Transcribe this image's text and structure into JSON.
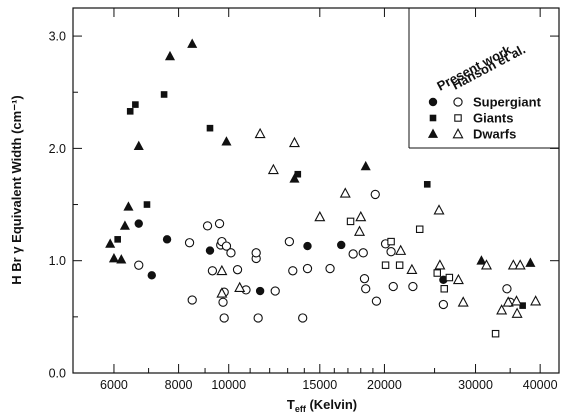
{
  "chart_data": {
    "type": "scatter",
    "title": "",
    "xlabel": {
      "main": "T",
      "sub": "eff",
      "rest": " (Kelvin)"
    },
    "ylabel": "H Br γ Equivalent Width (cm⁻¹)",
    "x_scale": "log",
    "xlim": [
      5000,
      43500
    ],
    "ylim": [
      0.0,
      3.25
    ],
    "x_ticks": [
      {
        "value": 6000,
        "label": "6000"
      },
      {
        "value": 8000,
        "label": "8000"
      },
      {
        "value": 10000,
        "label": "10000"
      },
      {
        "value": 15000,
        "label": "15000"
      },
      {
        "value": 20000,
        "label": "20000"
      },
      {
        "value": 30000,
        "label": "30000"
      },
      {
        "value": 40000,
        "label": "40000"
      }
    ],
    "x_minor_ticks": [
      7000,
      9000,
      11000,
      12000,
      13000,
      14000,
      16000,
      17000,
      18000,
      19000,
      25000,
      35000
    ],
    "y_ticks": [
      {
        "value": 0.0,
        "label": "0.0"
      },
      {
        "value": 1.0,
        "label": "1.0"
      },
      {
        "value": 2.0,
        "label": "2.0"
      },
      {
        "value": 3.0,
        "label": "3.0"
      }
    ],
    "legend": {
      "placement": "top-right",
      "column_headers": [
        "Present work",
        "Hanson et al."
      ],
      "entries": [
        "Supergiant",
        "Giants",
        "Dwarfs"
      ]
    },
    "series": [
      {
        "class": "Supergiant",
        "source": "Present work",
        "marker": "filled-circle",
        "points": [
          [
            6700,
            1.33
          ],
          [
            7100,
            0.87
          ],
          [
            7600,
            1.19
          ],
          [
            9200,
            1.09
          ],
          [
            11500,
            0.73
          ],
          [
            14200,
            1.13
          ],
          [
            16500,
            1.14
          ],
          [
            26000,
            0.83
          ]
        ]
      },
      {
        "class": "Giants",
        "source": "Present work",
        "marker": "filled-square",
        "points": [
          [
            6100,
            1.19
          ],
          [
            6450,
            2.33
          ],
          [
            6600,
            2.39
          ],
          [
            6950,
            1.5
          ],
          [
            7500,
            2.48
          ],
          [
            9200,
            2.18
          ],
          [
            13600,
            1.77
          ],
          [
            24200,
            1.68
          ],
          [
            37000,
            0.6
          ]
        ]
      },
      {
        "class": "Dwarfs",
        "source": "Present work",
        "marker": "filled-triangle",
        "points": [
          [
            5900,
            1.15
          ],
          [
            6000,
            1.02
          ],
          [
            6200,
            1.01
          ],
          [
            6300,
            1.31
          ],
          [
            6400,
            1.48
          ],
          [
            6700,
            2.02
          ],
          [
            7700,
            2.82
          ],
          [
            8500,
            2.93
          ],
          [
            9900,
            2.06
          ],
          [
            13400,
            1.73
          ],
          [
            18400,
            1.84
          ],
          [
            30800,
            1.0
          ],
          [
            38300,
            0.98
          ]
        ]
      },
      {
        "class": "Supergiant",
        "source": "Hanson et al.",
        "marker": "open-circle",
        "points": [
          [
            6700,
            0.96
          ],
          [
            8400,
            1.16
          ],
          [
            8500,
            0.65
          ],
          [
            9100,
            1.31
          ],
          [
            9300,
            0.91
          ],
          [
            9600,
            1.33
          ],
          [
            9650,
            1.14
          ],
          [
            9700,
            1.17
          ],
          [
            9750,
            0.63
          ],
          [
            9800,
            0.72
          ],
          [
            9800,
            0.49
          ],
          [
            9900,
            1.13
          ],
          [
            10100,
            1.07
          ],
          [
            10400,
            0.92
          ],
          [
            10800,
            0.74
          ],
          [
            11300,
            1.02
          ],
          [
            11300,
            1.07
          ],
          [
            11400,
            0.49
          ],
          [
            12300,
            0.73
          ],
          [
            13100,
            1.17
          ],
          [
            13300,
            0.91
          ],
          [
            13900,
            0.49
          ],
          [
            14200,
            0.93
          ],
          [
            15700,
            0.93
          ],
          [
            17400,
            1.06
          ],
          [
            18200,
            1.07
          ],
          [
            18300,
            0.84
          ],
          [
            18400,
            0.75
          ],
          [
            19200,
            1.59
          ],
          [
            19300,
            0.64
          ],
          [
            20100,
            1.15
          ],
          [
            20600,
            1.08
          ],
          [
            20800,
            0.77
          ],
          [
            22700,
            0.77
          ],
          [
            26000,
            0.61
          ],
          [
            34500,
            0.75
          ],
          [
            35000,
            0.63
          ]
        ]
      },
      {
        "class": "Giants",
        "source": "Hanson et al.",
        "marker": "open-square",
        "points": [
          [
            17200,
            1.35
          ],
          [
            20100,
            0.96
          ],
          [
            20600,
            1.17
          ],
          [
            21400,
            0.96
          ],
          [
            23400,
            1.28
          ],
          [
            25300,
            0.89
          ],
          [
            26100,
            0.75
          ],
          [
            26700,
            0.85
          ],
          [
            32800,
            0.35
          ]
        ]
      },
      {
        "class": "Dwarfs",
        "source": "Hanson et al.",
        "marker": "open-triangle",
        "points": [
          [
            9700,
            0.91
          ],
          [
            9700,
            0.71
          ],
          [
            10500,
            0.76
          ],
          [
            11500,
            2.13
          ],
          [
            12200,
            1.81
          ],
          [
            13400,
            2.05
          ],
          [
            15000,
            1.39
          ],
          [
            16800,
            1.6
          ],
          [
            17900,
            1.26
          ],
          [
            18000,
            1.39
          ],
          [
            21500,
            1.09
          ],
          [
            22600,
            0.92
          ],
          [
            25500,
            1.45
          ],
          [
            25600,
            0.96
          ],
          [
            27800,
            0.83
          ],
          [
            28400,
            0.63
          ],
          [
            31500,
            0.96
          ],
          [
            33700,
            0.56
          ],
          [
            34700,
            0.63
          ],
          [
            35500,
            0.96
          ],
          [
            36000,
            0.64
          ],
          [
            36100,
            0.53
          ],
          [
            36600,
            0.96
          ],
          [
            39200,
            0.64
          ]
        ]
      }
    ]
  }
}
